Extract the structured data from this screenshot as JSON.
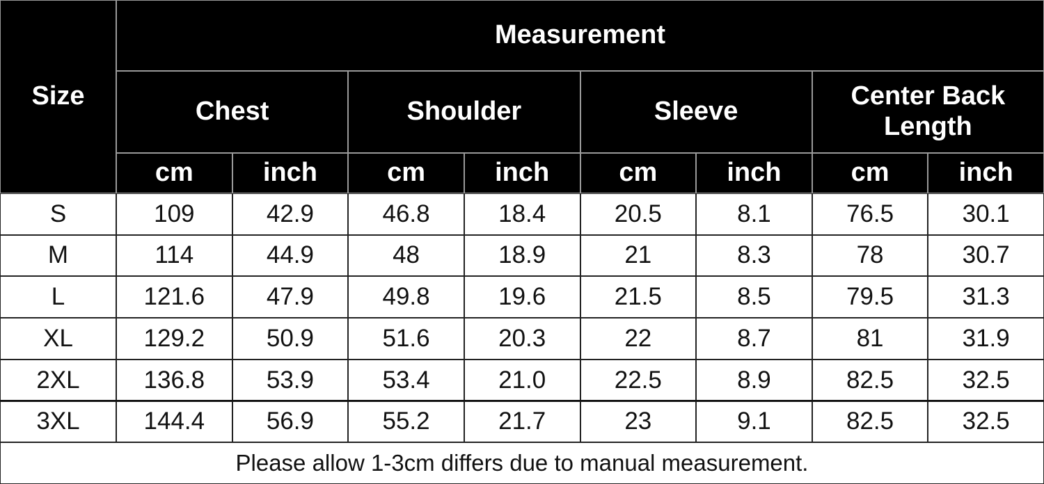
{
  "header": {
    "size": "Size",
    "measurement": "Measurement",
    "groups": [
      "Chest",
      "Shoulder",
      "Sleeve",
      "Center Back Length"
    ],
    "units": [
      "cm",
      "inch",
      "cm",
      "inch",
      "cm",
      "inch",
      "cm",
      "inch"
    ]
  },
  "table": {
    "rows": [
      [
        "S",
        "109",
        "42.9",
        "46.8",
        "18.4",
        "20.5",
        "8.1",
        "76.5",
        "30.1"
      ],
      [
        "M",
        "114",
        "44.9",
        "48",
        "18.9",
        "21",
        "8.3",
        "78",
        "30.7"
      ],
      [
        "L",
        "121.6",
        "47.9",
        "49.8",
        "19.6",
        "21.5",
        "8.5",
        "79.5",
        "31.3"
      ],
      [
        "XL",
        "129.2",
        "50.9",
        "51.6",
        "20.3",
        "22",
        "8.7",
        "81",
        "31.9"
      ],
      [
        "2XL",
        "136.8",
        "53.9",
        "53.4",
        "21.0",
        "22.5",
        "8.9",
        "82.5",
        "32.5"
      ],
      [
        "3XL",
        "144.4",
        "56.9",
        "55.2",
        "21.7",
        "23",
        "9.1",
        "82.5",
        "32.5"
      ]
    ]
  },
  "footer": "Please allow 1-3cm differs due to manual measurement."
}
